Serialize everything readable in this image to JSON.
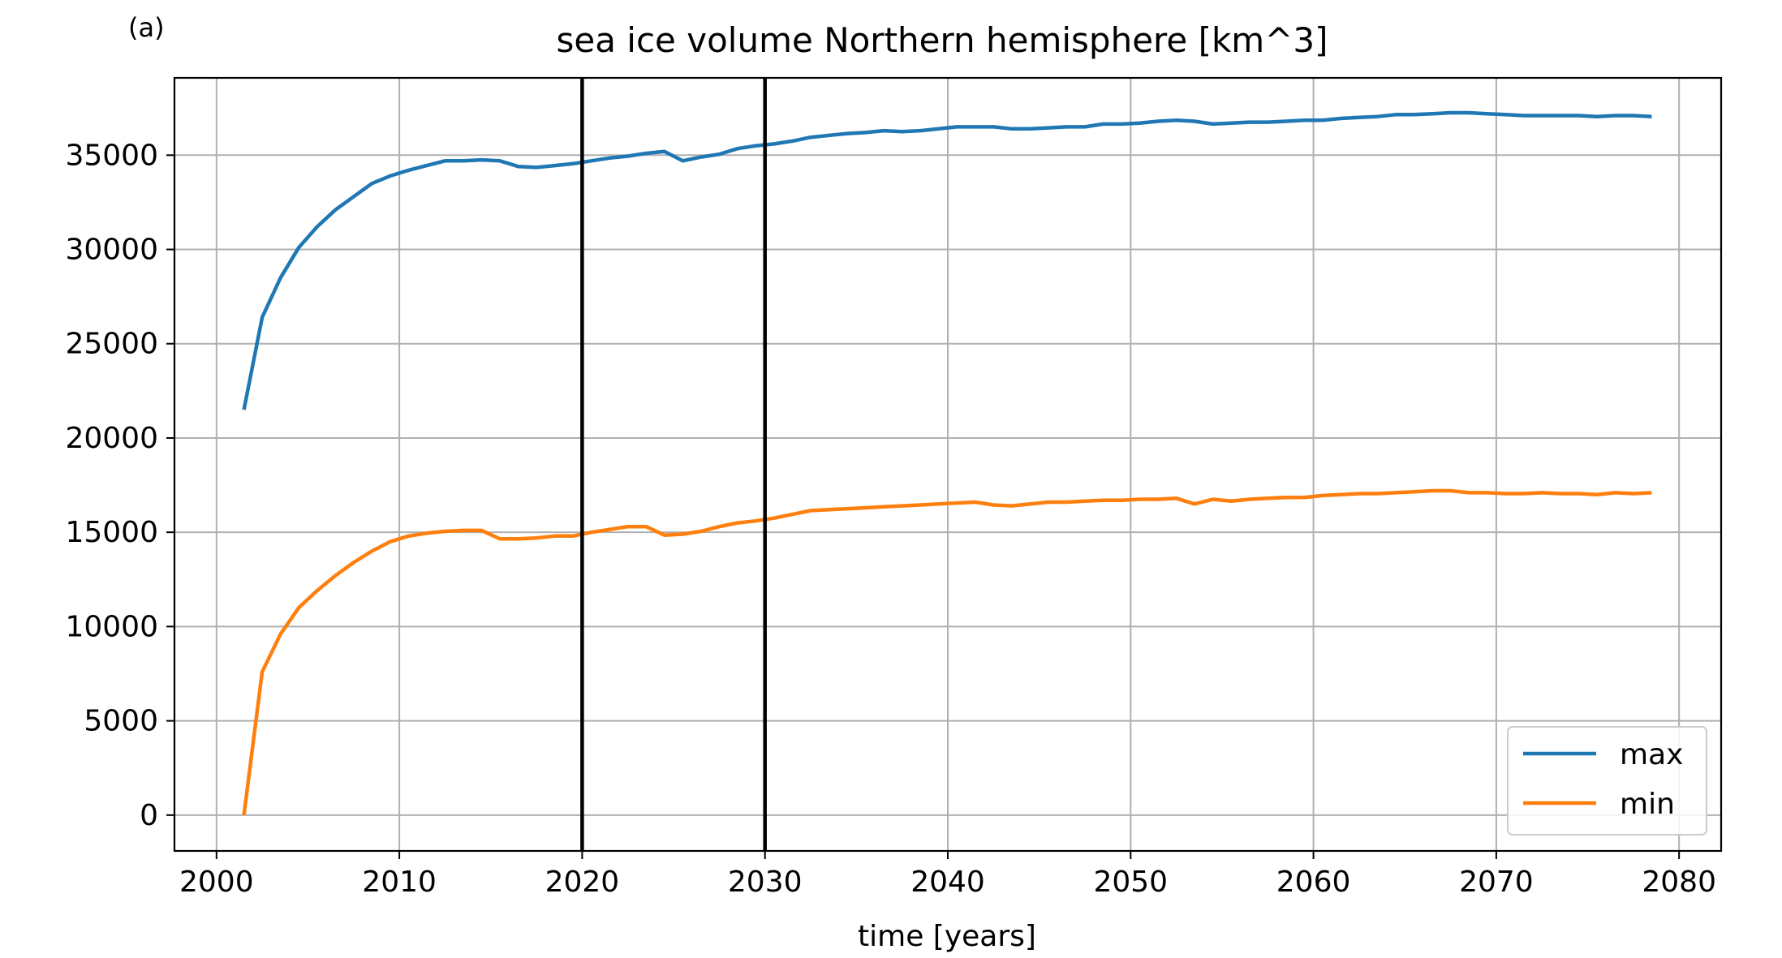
{
  "panel_label": "(a)",
  "chart_data": {
    "type": "line",
    "title": "sea ice volume Northern hemisphere [km^3]",
    "xlabel": "time [years]",
    "ylabel": "",
    "xlim": [
      1997.7,
      2082.3
    ],
    "ylim": [
      -1900,
      39100
    ],
    "xticks": [
      2000,
      2010,
      2020,
      2030,
      2040,
      2050,
      2060,
      2070,
      2080
    ],
    "yticks": [
      0,
      5000,
      10000,
      15000,
      20000,
      25000,
      30000,
      35000
    ],
    "grid": true,
    "legend_position": "lower-right",
    "vlines": [
      2020,
      2030
    ],
    "vline_color": "#000000",
    "x": [
      2001.5,
      2002.5,
      2003.5,
      2004.5,
      2005.5,
      2006.5,
      2007.5,
      2008.5,
      2009.5,
      2010.5,
      2011.5,
      2012.5,
      2013.5,
      2014.5,
      2015.5,
      2016.5,
      2017.5,
      2018.5,
      2019.5,
      2020.5,
      2021.5,
      2022.5,
      2023.5,
      2024.5,
      2025.5,
      2026.5,
      2027.5,
      2028.5,
      2029.5,
      2030.5,
      2031.5,
      2032.5,
      2033.5,
      2034.5,
      2035.5,
      2036.5,
      2037.5,
      2038.5,
      2039.5,
      2040.5,
      2041.5,
      2042.5,
      2043.5,
      2044.5,
      2045.5,
      2046.5,
      2047.5,
      2048.5,
      2049.5,
      2050.5,
      2051.5,
      2052.5,
      2053.5,
      2054.5,
      2055.5,
      2056.5,
      2057.5,
      2058.5,
      2059.5,
      2060.5,
      2061.5,
      2062.5,
      2063.5,
      2064.5,
      2065.5,
      2066.5,
      2067.5,
      2068.5,
      2069.5,
      2070.5,
      2071.5,
      2072.5,
      2073.5,
      2074.5,
      2075.5,
      2076.5,
      2077.5,
      2078.5
    ],
    "series": [
      {
        "name": "max",
        "color": "#1f77b4",
        "values": [
          21500,
          26400,
          28500,
          30100,
          31200,
          32100,
          32800,
          33500,
          33900,
          34200,
          34450,
          34700,
          34700,
          34750,
          34700,
          34400,
          34350,
          34450,
          34550,
          34700,
          34850,
          34950,
          35100,
          35200,
          34700,
          34900,
          35050,
          35350,
          35500,
          35600,
          35750,
          35950,
          36050,
          36150,
          36200,
          36300,
          36250,
          36300,
          36400,
          36500,
          36500,
          36500,
          36400,
          36400,
          36450,
          36500,
          36500,
          36650,
          36650,
          36700,
          36800,
          36850,
          36800,
          36650,
          36700,
          36750,
          36750,
          36800,
          36850,
          36850,
          36950,
          37000,
          37050,
          37150,
          37150,
          37200,
          37250,
          37250,
          37200,
          37150,
          37100,
          37100,
          37100,
          37100,
          37050,
          37100,
          37100,
          37050
        ]
      },
      {
        "name": "min",
        "color": "#ff7f0e",
        "values": [
          0,
          7600,
          9600,
          11000,
          11900,
          12700,
          13400,
          14000,
          14500,
          14800,
          14950,
          15050,
          15100,
          15100,
          14650,
          14650,
          14700,
          14800,
          14800,
          15000,
          15150,
          15300,
          15300,
          14850,
          14900,
          15050,
          15300,
          15500,
          15600,
          15750,
          15950,
          16150,
          16200,
          16250,
          16300,
          16350,
          16400,
          16450,
          16500,
          16550,
          16600,
          16450,
          16400,
          16500,
          16600,
          16600,
          16650,
          16700,
          16700,
          16750,
          16750,
          16800,
          16500,
          16750,
          16650,
          16750,
          16800,
          16850,
          16850,
          16950,
          17000,
          17050,
          17050,
          17100,
          17150,
          17200,
          17200,
          17100,
          17100,
          17050,
          17050,
          17100,
          17050,
          17050,
          17000,
          17100,
          17050,
          17100
        ]
      }
    ]
  }
}
